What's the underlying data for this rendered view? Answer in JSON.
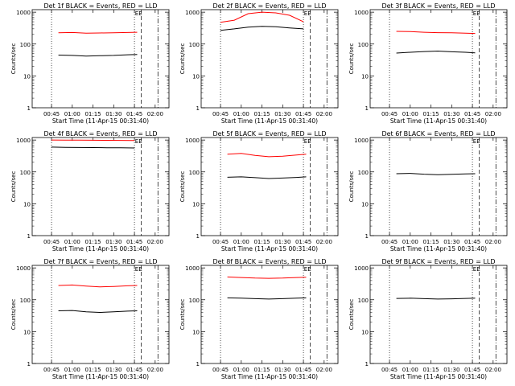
{
  "figure": {
    "background": "#ffffff",
    "colors": {
      "events": "#000000",
      "lld": "#ff0000",
      "axes": "#000000"
    },
    "common": {
      "xlabel": "Start Time (11-Apr-15 00:31:40)",
      "ylabel": "Counts/sec",
      "x_tick_labels": [
        "00:45",
        "01:00",
        "01:15",
        "01:30",
        "01:45",
        "02:00"
      ],
      "y_tick_labels": [
        "1",
        "10",
        "100",
        "1000"
      ],
      "ylim": [
        1,
        1200
      ],
      "y_scale": "log",
      "marker_label": "EE"
    }
  },
  "chart_data": [
    {
      "type": "line",
      "title": "Det 1f BLACK = Events, RED = LLD",
      "x": [
        "00:50",
        "01:00",
        "01:10",
        "01:20",
        "01:30",
        "01:40",
        "01:47"
      ],
      "series": [
        {
          "name": "Events",
          "values": [
            45,
            44,
            42,
            43,
            44,
            46,
            47
          ]
        },
        {
          "name": "LLD",
          "values": [
            225,
            230,
            218,
            222,
            226,
            230,
            235
          ]
        }
      ]
    },
    {
      "type": "line",
      "title": "Det 2f BLACK = Events, RED = LLD",
      "x": [
        "00:45",
        "00:55",
        "01:05",
        "01:15",
        "01:25",
        "01:35",
        "01:45"
      ],
      "series": [
        {
          "name": "Events",
          "values": [
            270,
            300,
            340,
            360,
            350,
            320,
            300
          ]
        },
        {
          "name": "LLD",
          "values": [
            480,
            560,
            900,
            1000,
            950,
            800,
            500
          ]
        }
      ]
    },
    {
      "type": "line",
      "title": "Det 3f BLACK = Events, RED = LLD",
      "x": [
        "00:50",
        "01:00",
        "01:10",
        "01:20",
        "01:30",
        "01:40",
        "01:47"
      ],
      "series": [
        {
          "name": "Events",
          "values": [
            52,
            55,
            58,
            60,
            57,
            55,
            53
          ]
        },
        {
          "name": "LLD",
          "values": [
            250,
            245,
            235,
            228,
            225,
            220,
            215
          ]
        }
      ]
    },
    {
      "type": "line",
      "title": "Det 4f BLACK = Events, RED = LLD",
      "x": [
        "00:45",
        "00:55",
        "01:05",
        "01:15",
        "01:25",
        "01:35",
        "01:45"
      ],
      "series": [
        {
          "name": "Events",
          "values": [
            600,
            590,
            585,
            580,
            575,
            570,
            565
          ]
        },
        {
          "name": "LLD",
          "values": [
            1000,
            995,
            990,
            985,
            980,
            975,
            970
          ]
        }
      ]
    },
    {
      "type": "line",
      "title": "Det 5f BLACK = Events, RED = LLD",
      "x": [
        "00:50",
        "01:00",
        "01:10",
        "01:20",
        "01:30",
        "01:40",
        "01:47"
      ],
      "series": [
        {
          "name": "Events",
          "values": [
            68,
            70,
            66,
            62,
            64,
            67,
            70
          ]
        },
        {
          "name": "LLD",
          "values": [
            360,
            380,
            330,
            300,
            310,
            340,
            360
          ]
        }
      ]
    },
    {
      "type": "line",
      "title": "Det 6f BLACK = Events, RED = LLD",
      "x": [
        "00:50",
        "01:00",
        "01:10",
        "01:20",
        "01:30",
        "01:40",
        "01:47"
      ],
      "series": [
        {
          "name": "Events",
          "values": [
            88,
            90,
            85,
            82,
            84,
            87,
            88
          ]
        }
      ]
    },
    {
      "type": "line",
      "title": "Det 7f BLACK = Events, RED = LLD",
      "x": [
        "00:50",
        "01:00",
        "01:10",
        "01:20",
        "01:30",
        "01:40",
        "01:47"
      ],
      "series": [
        {
          "name": "Events",
          "values": [
            45,
            46,
            42,
            40,
            42,
            44,
            45
          ]
        },
        {
          "name": "LLD",
          "values": [
            280,
            290,
            270,
            255,
            262,
            275,
            280
          ]
        }
      ]
    },
    {
      "type": "line",
      "title": "Det 8f BLACK = Events, RED = LLD",
      "x": [
        "00:50",
        "01:00",
        "01:10",
        "01:20",
        "01:30",
        "01:40",
        "01:47"
      ],
      "series": [
        {
          "name": "Events",
          "values": [
            115,
            112,
            108,
            105,
            108,
            112,
            115
          ]
        },
        {
          "name": "LLD",
          "values": [
            520,
            500,
            480,
            470,
            480,
            500,
            510
          ]
        }
      ]
    },
    {
      "type": "line",
      "title": "Det 9f BLACK = Events, RED = LLD",
      "x": [
        "00:50",
        "01:00",
        "01:10",
        "01:20",
        "01:30",
        "01:40",
        "01:47"
      ],
      "series": [
        {
          "name": "Events",
          "values": [
            110,
            112,
            108,
            105,
            107,
            110,
            112
          ]
        }
      ]
    }
  ]
}
